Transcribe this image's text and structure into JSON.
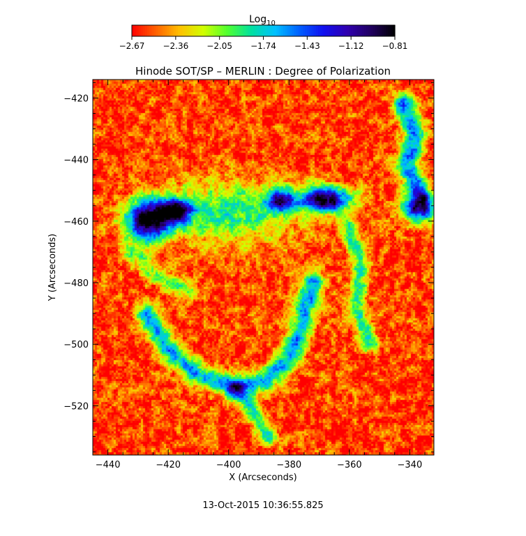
{
  "chart_data": {
    "type": "heatmap",
    "title": "Hinode SOT/SP – MERLIN : Degree of Polarization",
    "xlabel": "X (Arcseconds)",
    "ylabel": "Y (Arcseconds)",
    "xlim": [
      -445,
      -332
    ],
    "ylim": [
      -536,
      -414
    ],
    "x_ticks": [
      -440,
      -420,
      -400,
      -380,
      -360,
      -340
    ],
    "y_ticks": [
      -420,
      -440,
      -460,
      -480,
      -500,
      -520
    ],
    "x_tick_labels": [
      "−440",
      "−420",
      "−400",
      "−380",
      "−360",
      "−340"
    ],
    "y_tick_labels": [
      "−420",
      "−440",
      "−460",
      "−480",
      "−500",
      "−520"
    ],
    "colorbar": {
      "title": "Log",
      "title_subscript": "10",
      "range": [
        -2.67,
        -0.81
      ],
      "ticks": [
        -2.67,
        -2.36,
        -2.05,
        -1.74,
        -1.43,
        -1.12,
        -0.81
      ],
      "tick_labels": [
        "−2.67",
        "−2.36",
        "−2.05",
        "−1.74",
        "−1.43",
        "−1.12",
        "−0.81"
      ],
      "colormap": [
        "#ff0000",
        "#ff6000",
        "#ffc000",
        "#d0ff00",
        "#50ff30",
        "#00e0a0",
        "#00c0ff",
        "#0060ff",
        "#1010f0",
        "#3000b0",
        "#200060",
        "#000000"
      ]
    },
    "features": [
      {
        "type": "blob",
        "x": -427,
        "y": -460,
        "sx": 5,
        "sy": 4.5,
        "amp": 2.2
      },
      {
        "type": "blob",
        "x": -418,
        "y": -457,
        "sx": 4,
        "sy": 3,
        "amp": 1.8
      },
      {
        "type": "blob",
        "x": -368,
        "y": -453,
        "sx": 6,
        "sy": 3,
        "amp": 2.2
      },
      {
        "type": "blob",
        "x": -383,
        "y": -453,
        "sx": 3,
        "sy": 2.5,
        "amp": 1.6
      },
      {
        "type": "blob",
        "x": -337,
        "y": -456,
        "sx": 4,
        "sy": 3,
        "amp": 1.8
      },
      {
        "type": "blob",
        "x": -400,
        "y": -457,
        "sx": 16,
        "sy": 7,
        "amp": 0.9
      },
      {
        "type": "ridge",
        "points": [
          [
            -427,
            -490
          ],
          [
            -420,
            -502
          ],
          [
            -410,
            -510
          ],
          [
            -398,
            -514
          ],
          [
            -388,
            -512
          ],
          [
            -380,
            -505
          ],
          [
            -376,
            -494
          ],
          [
            -372,
            -480
          ]
        ],
        "width": 2.5,
        "amp": 1.2
      },
      {
        "type": "ridge",
        "points": [
          [
            -342,
            -422
          ],
          [
            -338,
            -432
          ],
          [
            -341,
            -442
          ],
          [
            -336,
            -452
          ]
        ],
        "width": 2.5,
        "amp": 1.3
      },
      {
        "type": "ridge",
        "points": [
          [
            -398,
            -514
          ],
          [
            -393,
            -520
          ],
          [
            -387,
            -530
          ]
        ],
        "width": 2,
        "amp": 0.9
      },
      {
        "type": "ridge",
        "points": [
          [
            -360,
            -462
          ],
          [
            -356,
            -474
          ],
          [
            -358,
            -488
          ],
          [
            -353,
            -500
          ]
        ],
        "width": 2,
        "amp": 0.9
      },
      {
        "type": "ridge",
        "points": [
          [
            -432,
            -470
          ],
          [
            -424,
            -478
          ],
          [
            -414,
            -482
          ]
        ],
        "width": 2,
        "amp": 0.7
      }
    ]
  },
  "footer": {
    "timestamp": "13-Oct-2015 10:36:55.825"
  }
}
